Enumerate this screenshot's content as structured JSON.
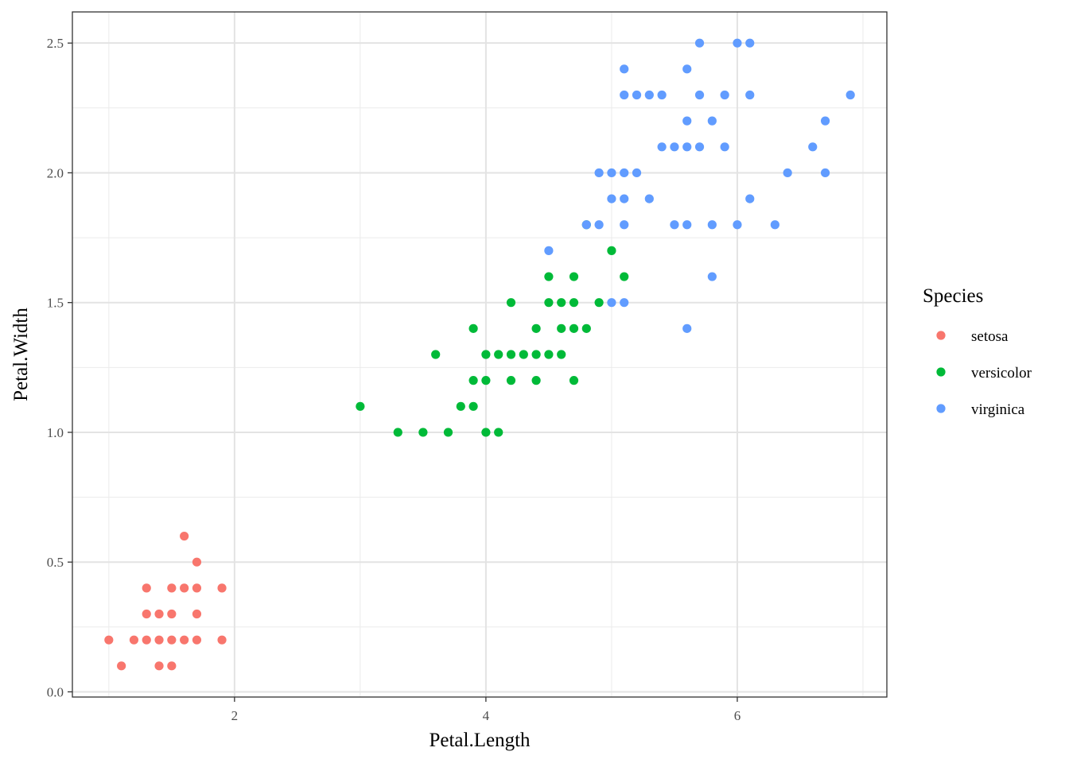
{
  "chart_data": {
    "type": "scatter",
    "xlabel": "Petal.Length",
    "ylabel": "Petal.Width",
    "xlim": [
      0.71,
      7.19
    ],
    "ylim": [
      -0.02,
      2.62
    ],
    "x_ticks": [
      2,
      4,
      6
    ],
    "x_tick_labels": [
      "2",
      "4",
      "6"
    ],
    "y_ticks": [
      0,
      0.5,
      1,
      1.5,
      2,
      2.5
    ],
    "y_tick_labels": [
      "0.0",
      "0.5",
      "1.0",
      "1.5",
      "2.0",
      "2.5"
    ],
    "grid": true,
    "legend": {
      "title": "Species",
      "position": "right"
    },
    "series": [
      {
        "name": "setosa",
        "color": "#F8766D",
        "points": [
          [
            1.0,
            0.2
          ],
          [
            1.1,
            0.1
          ],
          [
            1.2,
            0.2
          ],
          [
            1.3,
            0.2
          ],
          [
            1.3,
            0.3
          ],
          [
            1.3,
            0.4
          ],
          [
            1.4,
            0.1
          ],
          [
            1.4,
            0.2
          ],
          [
            1.4,
            0.3
          ],
          [
            1.5,
            0.1
          ],
          [
            1.5,
            0.2
          ],
          [
            1.5,
            0.3
          ],
          [
            1.5,
            0.4
          ],
          [
            1.6,
            0.2
          ],
          [
            1.6,
            0.4
          ],
          [
            1.6,
            0.6
          ],
          [
            1.7,
            0.2
          ],
          [
            1.7,
            0.3
          ],
          [
            1.7,
            0.4
          ],
          [
            1.7,
            0.5
          ],
          [
            1.9,
            0.2
          ],
          [
            1.9,
            0.4
          ]
        ]
      },
      {
        "name": "versicolor",
        "color": "#00BA38",
        "points": [
          [
            3.0,
            1.1
          ],
          [
            3.3,
            1.0
          ],
          [
            3.5,
            1.0
          ],
          [
            3.6,
            1.3
          ],
          [
            3.7,
            1.0
          ],
          [
            3.8,
            1.1
          ],
          [
            3.9,
            1.1
          ],
          [
            3.9,
            1.2
          ],
          [
            3.9,
            1.4
          ],
          [
            4.0,
            1.0
          ],
          [
            4.0,
            1.2
          ],
          [
            4.0,
            1.3
          ],
          [
            4.1,
            1.0
          ],
          [
            4.1,
            1.3
          ],
          [
            4.2,
            1.2
          ],
          [
            4.2,
            1.3
          ],
          [
            4.2,
            1.5
          ],
          [
            4.3,
            1.3
          ],
          [
            4.4,
            1.2
          ],
          [
            4.4,
            1.3
          ],
          [
            4.4,
            1.4
          ],
          [
            4.5,
            1.3
          ],
          [
            4.5,
            1.5
          ],
          [
            4.5,
            1.6
          ],
          [
            4.6,
            1.3
          ],
          [
            4.6,
            1.4
          ],
          [
            4.6,
            1.5
          ],
          [
            4.7,
            1.2
          ],
          [
            4.7,
            1.4
          ],
          [
            4.7,
            1.5
          ],
          [
            4.7,
            1.6
          ],
          [
            4.8,
            1.4
          ],
          [
            4.8,
            1.8
          ],
          [
            4.9,
            1.5
          ],
          [
            5.0,
            1.7
          ],
          [
            5.1,
            1.6
          ]
        ]
      },
      {
        "name": "virginica",
        "color": "#619CFF",
        "points": [
          [
            4.5,
            1.7
          ],
          [
            4.8,
            1.8
          ],
          [
            4.9,
            1.8
          ],
          [
            4.9,
            2.0
          ],
          [
            5.0,
            1.5
          ],
          [
            5.0,
            1.9
          ],
          [
            5.0,
            2.0
          ],
          [
            5.1,
            1.5
          ],
          [
            5.1,
            1.8
          ],
          [
            5.1,
            1.9
          ],
          [
            5.1,
            2.0
          ],
          [
            5.1,
            2.3
          ],
          [
            5.1,
            2.4
          ],
          [
            5.2,
            2.0
          ],
          [
            5.2,
            2.3
          ],
          [
            5.3,
            1.9
          ],
          [
            5.3,
            2.3
          ],
          [
            5.4,
            2.1
          ],
          [
            5.4,
            2.3
          ],
          [
            5.5,
            1.8
          ],
          [
            5.5,
            2.1
          ],
          [
            5.6,
            1.4
          ],
          [
            5.6,
            1.8
          ],
          [
            5.6,
            2.1
          ],
          [
            5.6,
            2.2
          ],
          [
            5.6,
            2.4
          ],
          [
            5.7,
            2.1
          ],
          [
            5.7,
            2.3
          ],
          [
            5.7,
            2.5
          ],
          [
            5.8,
            1.6
          ],
          [
            5.8,
            1.8
          ],
          [
            5.8,
            2.2
          ],
          [
            5.9,
            2.1
          ],
          [
            5.9,
            2.3
          ],
          [
            6.0,
            1.8
          ],
          [
            6.0,
            2.5
          ],
          [
            6.1,
            1.9
          ],
          [
            6.1,
            2.3
          ],
          [
            6.1,
            2.5
          ],
          [
            6.3,
            1.8
          ],
          [
            6.4,
            2.0
          ],
          [
            6.6,
            2.1
          ],
          [
            6.7,
            2.0
          ],
          [
            6.7,
            2.2
          ],
          [
            6.9,
            2.3
          ]
        ]
      }
    ]
  }
}
